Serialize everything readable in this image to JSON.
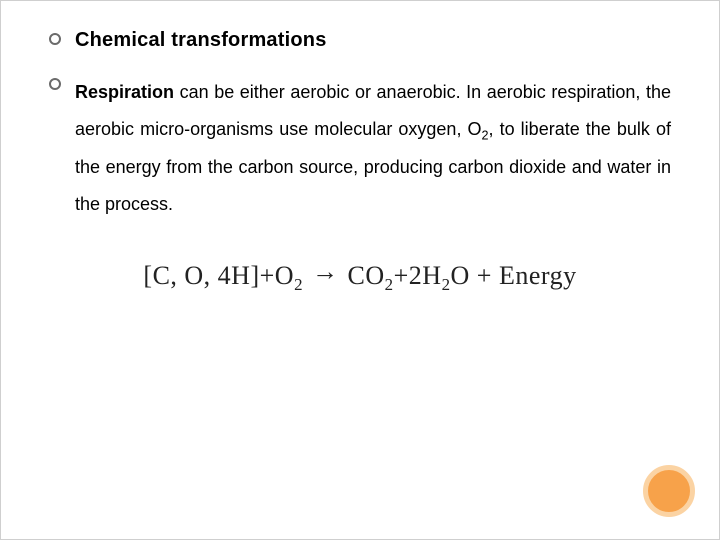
{
  "heading": "Chemical transformations",
  "body": {
    "lead_bold": "Respiration",
    "rest": " can be either aerobic or anaerobic. In aerobic respiration, the aerobic micro-organisms use molecular oxygen, O",
    "sub1": "2",
    "rest2": ", to liberate the bulk of the energy from the carbon source, producing carbon dioxide and water in the process."
  },
  "equation": {
    "lhs_open": "[",
    "lhs": "C, O, 4H",
    "lhs_close": "]",
    "plus1": "+O",
    "o2_sub": "2",
    "arrow": "→",
    "co2": "CO",
    "co2_sub": "2",
    "plus2": "+2H",
    "h2o_sub": "2",
    "h2o_o": "O + Energy"
  },
  "styling": {
    "page_bg": "#ffffff",
    "text_color": "#000000",
    "bullet_border": "#6b6b6b",
    "circle_fill": "#f7a24a",
    "circle_border": "#fbd3a3",
    "heading_fontsize": 20,
    "body_fontsize": 18,
    "equation_fontsize": 26
  }
}
